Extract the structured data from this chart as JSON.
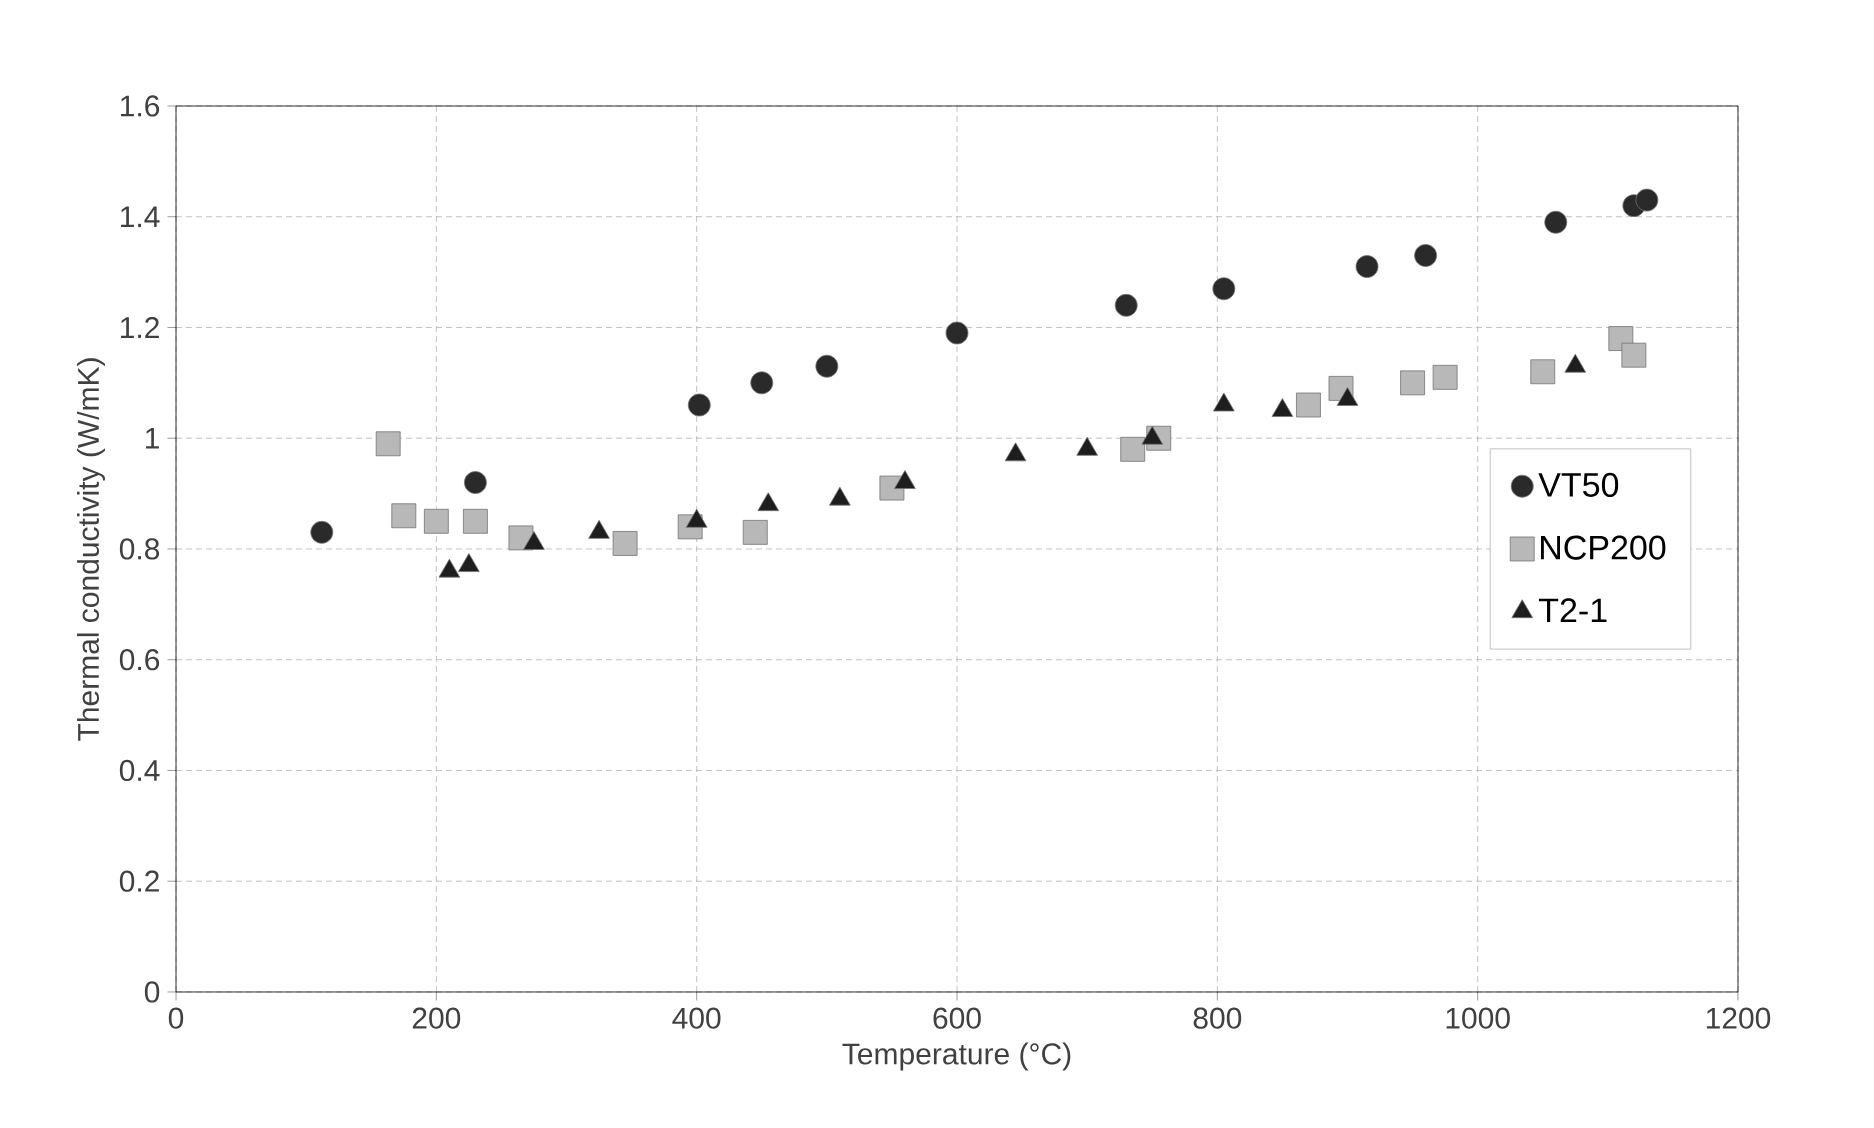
{
  "chart_data": {
    "type": "scatter",
    "xlabel": "Temperature (°C)",
    "ylabel": "Thermal conductivity (W/mK)",
    "xlim": [
      0,
      1200
    ],
    "xticks": [
      0,
      200,
      400,
      600,
      800,
      1000,
      1200
    ],
    "ylim": [
      0,
      1.6
    ],
    "yticks": [
      0,
      0.2,
      0.4,
      0.6,
      0.8,
      1,
      1.2,
      1.4,
      1.6
    ],
    "grid": true,
    "legend": "right",
    "series": [
      {
        "name": "VT50",
        "color": "#2a2a2a",
        "marker": "circle",
        "x": [
          112,
          230,
          402,
          450,
          500,
          600,
          730,
          805,
          915,
          960,
          1060,
          1120,
          1130
        ],
        "values": [
          0.83,
          0.92,
          1.06,
          1.1,
          1.13,
          1.19,
          1.24,
          1.27,
          1.31,
          1.33,
          1.39,
          1.42,
          1.43
        ]
      },
      {
        "name": "NCP200",
        "color": "#b8b8b8",
        "marker": "square",
        "x": [
          163,
          175,
          200,
          230,
          265,
          345,
          395,
          445,
          550,
          735,
          755,
          870,
          895,
          950,
          975,
          1050,
          1110,
          1120
        ],
        "values": [
          0.99,
          0.86,
          0.85,
          0.85,
          0.82,
          0.81,
          0.84,
          0.83,
          0.91,
          0.98,
          1.0,
          1.06,
          1.09,
          1.1,
          1.11,
          1.12,
          1.18,
          1.15
        ]
      },
      {
        "name": "T2-1",
        "color": "#1e1e1e",
        "marker": "triangle",
        "x": [
          210,
          225,
          275,
          325,
          400,
          455,
          510,
          560,
          645,
          700,
          750,
          805,
          850,
          900,
          1075
        ],
        "values": [
          0.76,
          0.77,
          0.81,
          0.83,
          0.85,
          0.88,
          0.89,
          0.92,
          0.97,
          0.98,
          1.0,
          1.06,
          1.05,
          1.07,
          1.13
        ]
      }
    ]
  }
}
